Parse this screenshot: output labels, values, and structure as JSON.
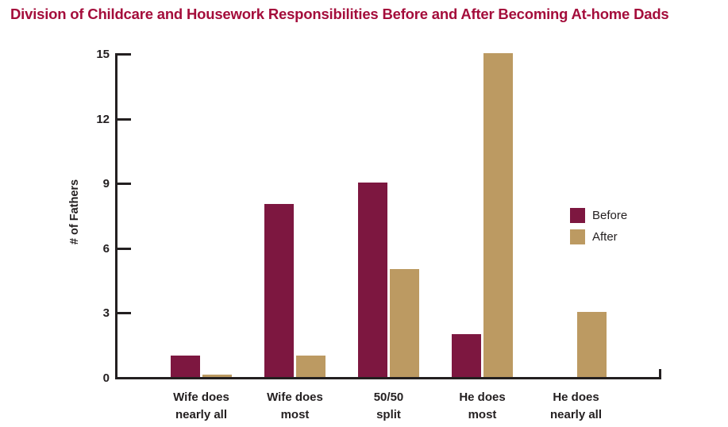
{
  "title": {
    "text": "Division of Childcare and Housework Responsibilities Before and After Becoming At-home Dads",
    "color": "#A40D3B"
  },
  "chart_data": {
    "type": "bar",
    "title": "Division of Childcare and Housework Responsibilities Before and After Becoming At-home Dads",
    "categories": [
      "Wife does nearly all",
      "Wife does most",
      "50/50 split",
      "He does most",
      "He does nearly all"
    ],
    "category_label_lines": [
      [
        "Wife does",
        "nearly all"
      ],
      [
        "Wife does",
        "most"
      ],
      [
        "50/50",
        "split"
      ],
      [
        "He does",
        "most"
      ],
      [
        "He does",
        "nearly all"
      ]
    ],
    "series": [
      {
        "name": "Before",
        "color": "#7D1740",
        "values": [
          1,
          8,
          9,
          2,
          0
        ]
      },
      {
        "name": "After",
        "color": "#BC9A62",
        "values": [
          0.1,
          1,
          5,
          15,
          3
        ]
      }
    ],
    "xlabel": "",
    "ylabel": "# of Fathers",
    "ylim": [
      0,
      15
    ],
    "yticks": [
      0,
      3,
      6,
      9,
      12,
      15
    ],
    "grid": false,
    "legend_position": "right-middle",
    "axis_color": "#231F20",
    "text_color": "#231F20"
  }
}
